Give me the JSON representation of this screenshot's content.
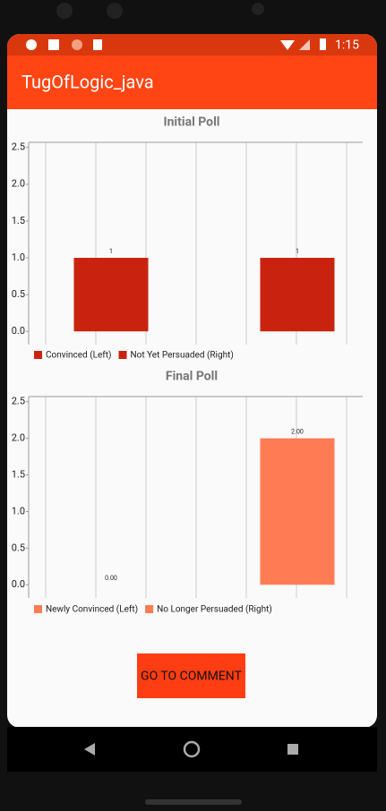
{
  "status_bar": {
    "time": "1:15"
  },
  "app_bar": {
    "title": "TugOfLogic_java"
  },
  "chart_data": [
    {
      "type": "bar",
      "title": "Initial Poll",
      "series": [
        {
          "name": "Convinced (Left)",
          "color": "#c9230f",
          "values": [
            1
          ]
        },
        {
          "name": "Not Yet Persuaded (Right)",
          "color": "#c9230f",
          "values": [
            1
          ]
        }
      ],
      "ylim": [
        -0.18,
        2.57
      ],
      "yticks": [
        {
          "value": 0,
          "label": "0.0"
        },
        {
          "value": 0.5,
          "label": "0.5"
        },
        {
          "value": 1,
          "label": "1.0"
        },
        {
          "value": 1.5,
          "label": "1.5"
        },
        {
          "value": 2,
          "label": "2.0"
        },
        {
          "value": 2.5,
          "label": "2.5"
        }
      ],
      "legend": "bottom-left"
    },
    {
      "type": "bar",
      "title": "Final Poll",
      "series": [
        {
          "name": "Newly Convinced (Left)",
          "color": "#ff7b54",
          "values": [
            0
          ],
          "value_labels": [
            "0.00"
          ]
        },
        {
          "name": "No Longer Persuaded (Right)",
          "color": "#ff7b54",
          "values": [
            2
          ],
          "value_labels": [
            "2.00"
          ]
        }
      ],
      "ylim": [
        -0.18,
        2.57
      ],
      "yticks": [
        {
          "value": 0,
          "label": "0.0"
        },
        {
          "value": 0.5,
          "label": "0.5"
        },
        {
          "value": 1,
          "label": "1.0"
        },
        {
          "value": 1.5,
          "label": "1.5"
        },
        {
          "value": 2,
          "label": "2.0"
        },
        {
          "value": 2.5,
          "label": "2.5"
        }
      ],
      "legend": "bottom-left"
    }
  ],
  "button": {
    "label": "GO TO COMMENT"
  }
}
